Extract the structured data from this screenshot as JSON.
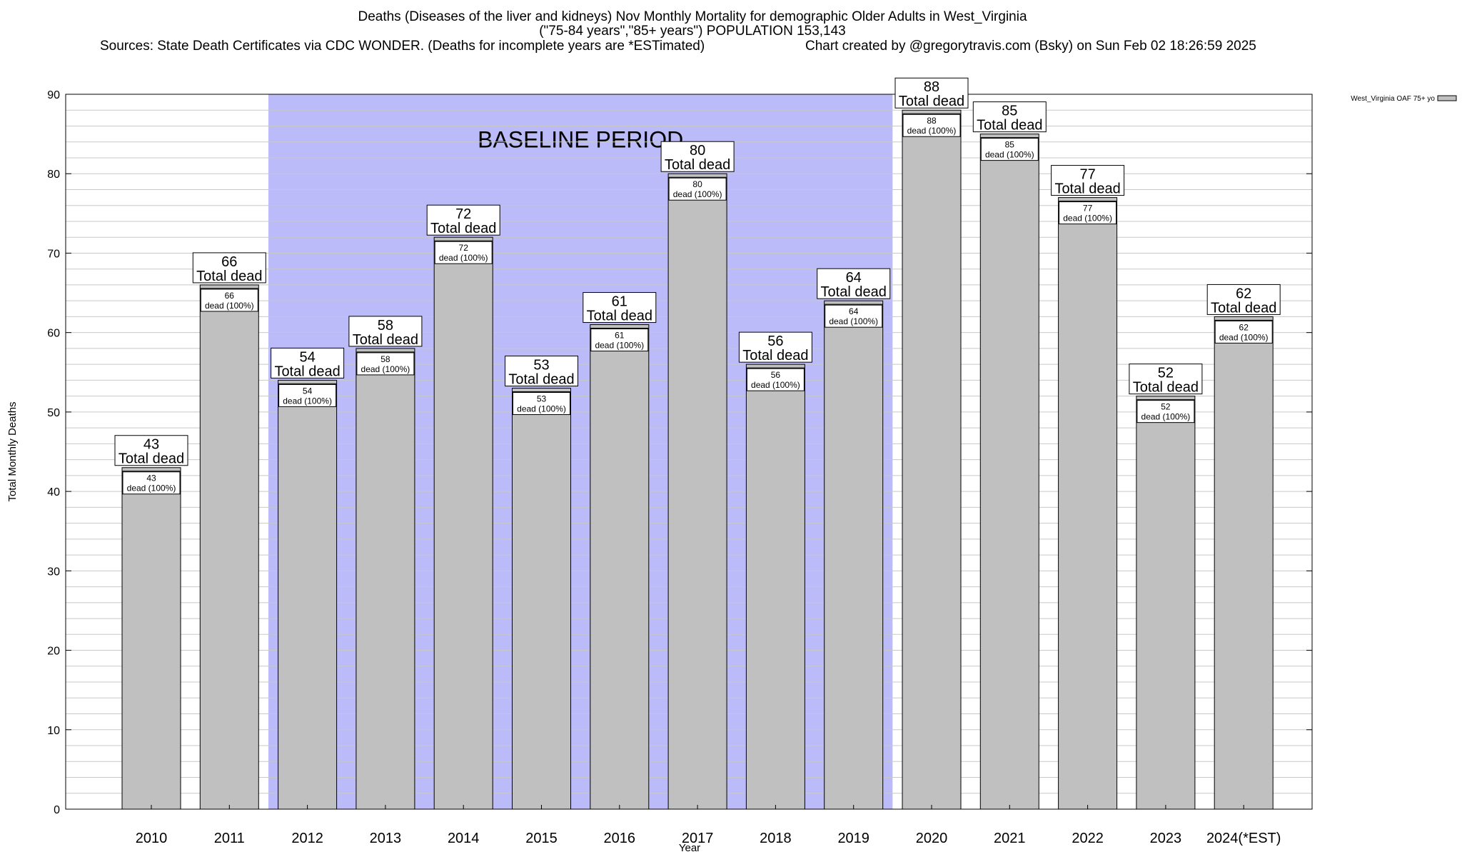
{
  "title": {
    "line1": "Deaths (Diseases of the liver and kidneys) Nov Monthly Mortality for demographic Older Adults in West_Virginia",
    "line2": "(\"75-84 years\",\"85+ years\") POPULATION 153,143",
    "sources": "Sources: State Death Certificates via CDC WONDER. (Deaths for incomplete years are *ESTimated)",
    "credit": "Chart created by @gregorytravis.com (Bsky) on Sun Feb 02 18:26:59 2025"
  },
  "chart_data": {
    "type": "bar",
    "categories": [
      "2010",
      "2011",
      "2012",
      "2013",
      "2014",
      "2015",
      "2016",
      "2017",
      "2018",
      "2019",
      "2020",
      "2021",
      "2022",
      "2023",
      "2024(*EST)"
    ],
    "series": [
      {
        "name": "West_Virginia OAF 75+ yo",
        "values": [
          43,
          66,
          54,
          58,
          72,
          53,
          61,
          80,
          56,
          64,
          88,
          85,
          77,
          52,
          62
        ]
      }
    ],
    "ylabel": "Total Monthly Deaths",
    "xlabel": "Year",
    "ylim": [
      0,
      90
    ],
    "yticks": [
      0,
      10,
      20,
      30,
      40,
      50,
      60,
      70,
      80,
      90
    ],
    "baseline": {
      "label": "BASELINE PERIOD",
      "start": "2012",
      "end": "2019"
    },
    "top_label_suffix": "Total dead",
    "inner_label_suffix": "dead (100%)",
    "legend_position": "top-right",
    "grid": true,
    "colors": {
      "bar": "#c0c0c0",
      "baseline": "#bbbbf9",
      "grid": "#c8c8c8"
    }
  }
}
